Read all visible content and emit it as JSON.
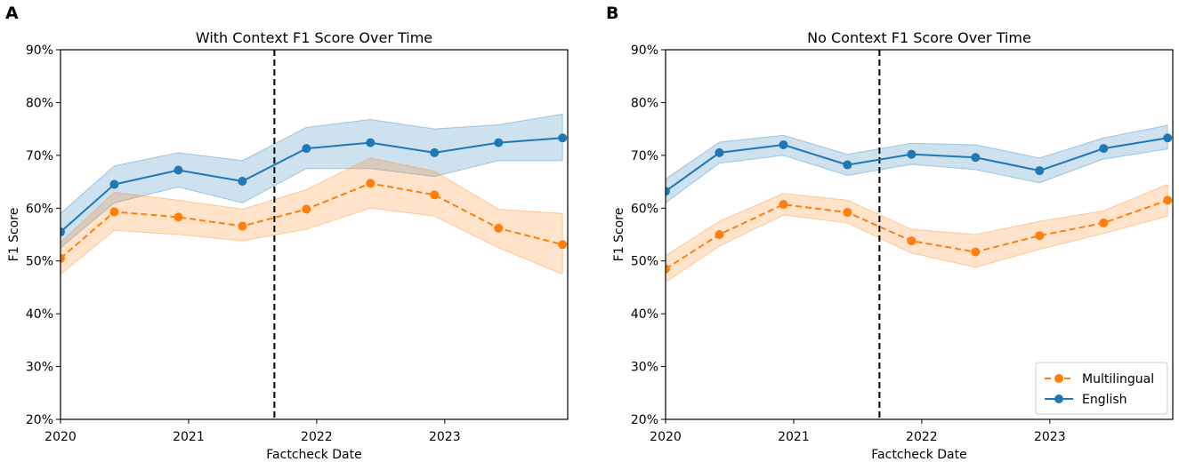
{
  "figure": {
    "panel_labels": [
      "A",
      "B"
    ]
  },
  "chart_data": [
    {
      "type": "line",
      "panel": "A",
      "title": "With Context F1 Score Over Time",
      "xlabel": "Factcheck Date",
      "ylabel": "F1 Score",
      "xlim": [
        2020.0,
        2023.96
      ],
      "ylim": [
        20,
        90
      ],
      "x_ticks": [
        2020,
        2021,
        2022,
        2023
      ],
      "x_tick_labels": [
        "2020",
        "2021",
        "2022",
        "2023"
      ],
      "y_ticks": [
        20,
        30,
        40,
        50,
        60,
        70,
        80,
        90
      ],
      "y_tick_labels": [
        "20%",
        "30%",
        "40%",
        "50%",
        "60%",
        "70%",
        "80%",
        "90%"
      ],
      "vline_x": 2021.67,
      "legend": null,
      "x": [
        2020.0,
        2020.42,
        2020.92,
        2021.42,
        2021.92,
        2022.42,
        2022.92,
        2023.42,
        2023.92
      ],
      "series": [
        {
          "name": "English",
          "color": "#1f77b4",
          "style": "solid",
          "values": [
            55.5,
            64.5,
            67.2,
            65.1,
            71.3,
            72.4,
            70.5,
            72.4,
            73.3
          ],
          "ci_low": [
            52.5,
            61.0,
            64.0,
            61.0,
            67.5,
            67.5,
            66.0,
            69.0,
            69.0
          ],
          "ci_high": [
            59.0,
            68.0,
            70.5,
            69.0,
            75.3,
            76.8,
            75.0,
            75.8,
            77.8
          ]
        },
        {
          "name": "Multilingual",
          "color": "#ff7f0e",
          "style": "dashed",
          "values": [
            50.5,
            59.3,
            58.3,
            56.6,
            59.8,
            64.7,
            62.5,
            56.2,
            53.1
          ],
          "ci_low": [
            47.5,
            55.8,
            55.0,
            53.8,
            56.0,
            60.0,
            58.5,
            52.5,
            47.5
          ],
          "ci_high": [
            53.5,
            63.0,
            61.5,
            59.8,
            63.5,
            69.5,
            67.0,
            59.8,
            59.0
          ]
        }
      ]
    },
    {
      "type": "line",
      "panel": "B",
      "title": "No Context F1 Score Over Time",
      "xlabel": "Factcheck Date",
      "ylabel": "F1 Score",
      "xlim": [
        2020.0,
        2023.96
      ],
      "ylim": [
        20,
        90
      ],
      "x_ticks": [
        2020,
        2021,
        2022,
        2023
      ],
      "x_tick_labels": [
        "2020",
        "2021",
        "2022",
        "2023"
      ],
      "y_ticks": [
        20,
        30,
        40,
        50,
        60,
        70,
        80,
        90
      ],
      "y_tick_labels": [
        "20%",
        "30%",
        "40%",
        "50%",
        "60%",
        "70%",
        "80%",
        "90%"
      ],
      "vline_x": 2021.67,
      "legend": "bottom-right",
      "x": [
        2020.0,
        2020.42,
        2020.92,
        2021.42,
        2021.92,
        2022.42,
        2022.92,
        2023.42,
        2023.92
      ],
      "series": [
        {
          "name": "Multilingual",
          "color": "#ff7f0e",
          "style": "dashed",
          "values": [
            48.5,
            55.0,
            60.7,
            59.2,
            53.8,
            51.7,
            54.8,
            57.2,
            61.5
          ],
          "ci_low": [
            46.0,
            52.8,
            58.7,
            57.2,
            51.5,
            48.8,
            52.2,
            55.2,
            58.5
          ],
          "ci_high": [
            51.0,
            57.5,
            62.8,
            61.5,
            56.0,
            55.0,
            57.5,
            59.5,
            64.5
          ]
        },
        {
          "name": "English",
          "color": "#1f77b4",
          "style": "solid",
          "values": [
            63.2,
            70.5,
            72.0,
            68.2,
            70.2,
            69.6,
            67.1,
            71.3,
            73.3
          ],
          "ci_low": [
            61.0,
            68.5,
            70.0,
            66.2,
            68.3,
            67.3,
            64.8,
            69.3,
            71.2
          ],
          "ci_high": [
            65.5,
            72.5,
            73.8,
            70.2,
            72.3,
            72.0,
            69.5,
            73.3,
            75.7
          ]
        }
      ]
    }
  ]
}
